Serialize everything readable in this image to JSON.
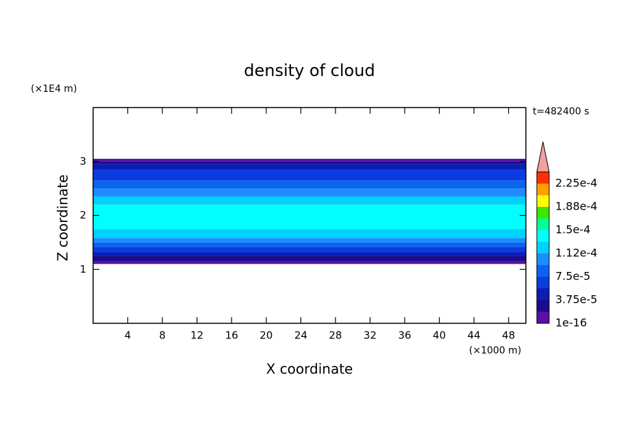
{
  "chart_data": {
    "type": "contour",
    "title": "density of cloud",
    "x_label": "X coordinate",
    "y_label": "Z coordinate",
    "x_unit": "(×1000 m)",
    "y_unit": "(×1E4 m)",
    "time_label": "t=482400 s",
    "xlim": [
      0,
      50
    ],
    "xticks": [
      4,
      8,
      12,
      16,
      20,
      24,
      28,
      32,
      36,
      40,
      44,
      48
    ],
    "ylim": [
      0,
      4
    ],
    "yticks": [
      1,
      2,
      3
    ],
    "field": {
      "z": [
        1.1,
        1.15,
        1.25,
        1.32,
        1.42,
        1.5,
        1.58,
        1.75,
        2.2,
        2.35,
        2.5,
        2.65,
        2.85,
        2.95,
        3.0,
        3.05
      ],
      "values": [
        1e-05,
        2.5e-05,
        4.5e-05,
        6e-05,
        8e-05,
        9.5e-05,
        0.00012,
        0.000135,
        0.00012,
        0.0001,
        8e-05,
        6e-05,
        4.5e-05,
        2.5e-05,
        1e-05
      ]
    },
    "colorbar": {
      "lim": [
        0,
        0.00024375
      ],
      "colors": [
        "#5a0fa5",
        "#1e0a8c",
        "#0a1eb4",
        "#0a3ce0",
        "#0a64f0",
        "#1e8cff",
        "#00d2ff",
        "#00ffff",
        "#00ff9a",
        "#3ce600",
        "#ffff00",
        "#ffa000",
        "#ff3000"
      ],
      "extend_color": "#f4a0a0",
      "ticks": [
        {
          "value": 1e-16,
          "label": "1e-16"
        },
        {
          "value": 3.75e-05,
          "label": "3.75e-5"
        },
        {
          "value": 7.5e-05,
          "label": "7.5e-5"
        },
        {
          "value": 0.0001125,
          "label": "1.12e-4"
        },
        {
          "value": 0.00015,
          "label": "1.5e-4"
        },
        {
          "value": 0.0001875,
          "label": "1.88e-4"
        },
        {
          "value": 0.000225,
          "label": "2.25e-4"
        }
      ]
    }
  }
}
